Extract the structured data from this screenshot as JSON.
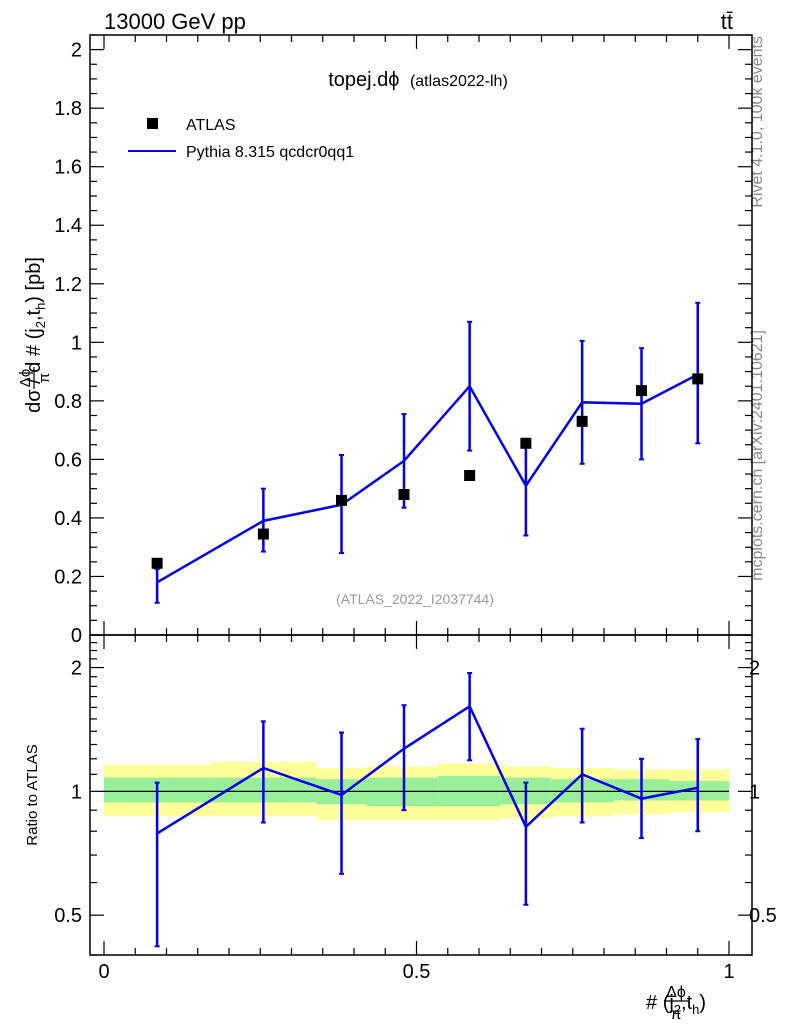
{
  "header": {
    "energy_label": "13000 GeV pp",
    "process_label": "tt̄",
    "side_label_top": "Rivet 4.1.0,  100k events",
    "side_label_bottom": "mcplots.cern.ch [arXiv:2401.10621]"
  },
  "chart_data": [
    {
      "type": "scatter",
      "panel": "main",
      "title": "topej.dϕ",
      "subtitle": "(atlas2022-lh)",
      "watermark": "(ATLAS_2022_I2037744)",
      "ylabel": "dσ / d #Δϕ/π(j2,th) [pb]",
      "ylabel_parts": {
        "prefix": "dσ / d #",
        "frac_num": "Δϕ",
        "frac_den": "π",
        "arg": "(j",
        "sub1": "2",
        "mid": ",t",
        "sub2": "h",
        "tail": ") [pb]"
      },
      "xlim": [
        0,
        1
      ],
      "ylim": [
        0,
        2.05
      ],
      "y_ticks": [
        0,
        0.2,
        0.4,
        0.6,
        0.8,
        1,
        1.2,
        1.4,
        1.6,
        1.8,
        2
      ],
      "y_tick_labels": [
        "0",
        "0.2",
        "0.4",
        "0.6",
        "0.8",
        "1",
        "1.2",
        "1.4",
        "1.6",
        "1.8",
        "2"
      ],
      "legend_position": "top-left",
      "series": [
        {
          "name": "ATLAS",
          "kind": "markers",
          "color": "#000000",
          "x": [
            0.085,
            0.255,
            0.38,
            0.48,
            0.585,
            0.675,
            0.765,
            0.86,
            0.95
          ],
          "y": [
            0.245,
            0.345,
            0.46,
            0.48,
            0.545,
            0.655,
            0.73,
            0.835,
            0.875
          ]
        },
        {
          "name": "Pythia 8.315 qcdcr0qq1",
          "kind": "line",
          "color": "#0000ee",
          "x": [
            0.085,
            0.255,
            0.38,
            0.48,
            0.585,
            0.675,
            0.765,
            0.86,
            0.95
          ],
          "y": [
            0.18,
            0.39,
            0.445,
            0.595,
            0.85,
            0.51,
            0.795,
            0.79,
            0.89
          ],
          "err_low": [
            0.11,
            0.285,
            0.28,
            0.435,
            0.63,
            0.34,
            0.585,
            0.6,
            0.655
          ],
          "err_high": [
            0.225,
            0.5,
            0.615,
            0.755,
            1.07,
            0.67,
            1.005,
            0.98,
            1.135
          ]
        }
      ]
    },
    {
      "type": "line",
      "panel": "ratio",
      "ylabel": "Ratio to ATLAS",
      "xlabel": "#Δϕ/π(j2,th)",
      "xlabel_parts": {
        "prefix": "#",
        "frac_num": "Δϕ",
        "frac_den": "π",
        "arg": "(j",
        "sub1": "2",
        "mid": ",t",
        "sub2": "h",
        "tail": ")"
      },
      "yscale": "log",
      "xlim": [
        0,
        1
      ],
      "ylim": [
        0.4,
        2.4
      ],
      "y_ticks": [
        0.5,
        1,
        2
      ],
      "y_tick_labels": [
        "0.5",
        "1",
        "2"
      ],
      "x_ticks": [
        0,
        0.5,
        1
      ],
      "x_tick_labels": [
        "0",
        "0.5",
        "1"
      ],
      "bands": {
        "bin_edges": [
          0,
          0.17,
          0.34,
          0.42,
          0.535,
          0.635,
          0.715,
          0.815,
          0.905,
          1
        ],
        "yellow_low": [
          0.87,
          0.87,
          0.85,
          0.85,
          0.85,
          0.86,
          0.87,
          0.88,
          0.89
        ],
        "yellow_high": [
          1.16,
          1.18,
          1.14,
          1.15,
          1.17,
          1.15,
          1.14,
          1.13,
          1.13
        ],
        "green_low": [
          0.94,
          0.94,
          0.93,
          0.92,
          0.92,
          0.93,
          0.94,
          0.95,
          0.95
        ],
        "green_high": [
          1.08,
          1.08,
          1.07,
          1.08,
          1.09,
          1.08,
          1.07,
          1.07,
          1.06
        ],
        "yellow_color": "#ffff99",
        "green_color": "#99ee99"
      },
      "series": [
        {
          "name": "Pythia 8.315 qcdcr0qq1",
          "color": "#0000ee",
          "x": [
            0.085,
            0.255,
            0.38,
            0.48,
            0.585,
            0.675,
            0.765,
            0.86,
            0.95
          ],
          "y": [
            0.79,
            1.14,
            0.98,
            1.27,
            1.61,
            0.82,
            1.1,
            0.96,
            1.02
          ],
          "err_low": [
            0.42,
            0.84,
            0.63,
            0.9,
            1.19,
            0.53,
            0.84,
            0.77,
            0.8
          ],
          "err_high": [
            1.05,
            1.48,
            1.39,
            1.62,
            1.94,
            1.05,
            1.42,
            1.2,
            1.34
          ]
        }
      ]
    }
  ]
}
